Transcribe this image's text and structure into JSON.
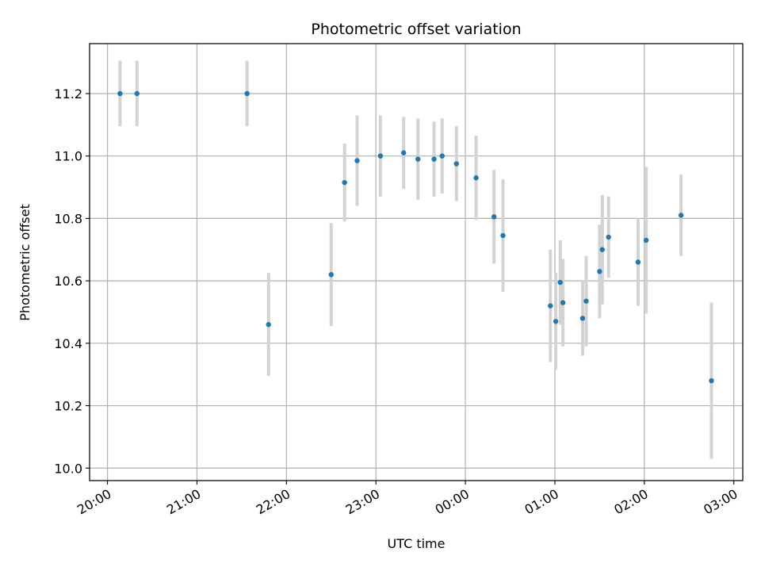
{
  "chart_data": {
    "type": "scatter",
    "title": "Photometric offset variation",
    "xlabel": "UTC time",
    "ylabel": "Photometric offset",
    "x_axis": "time (hours relative to 00:00 UTC)",
    "xlim": [
      -4.2,
      3.1
    ],
    "ylim": [
      9.96,
      11.36
    ],
    "x_ticks": [
      -4,
      -3,
      -2,
      -1,
      0,
      1,
      2,
      3
    ],
    "x_tick_labels": [
      "20:00",
      "21:00",
      "22:00",
      "23:00",
      "00:00",
      "01:00",
      "02:00",
      "03:00"
    ],
    "y_ticks": [
      10.0,
      10.2,
      10.4,
      10.6,
      10.8,
      11.0,
      11.2
    ],
    "y_tick_labels": [
      "10.0",
      "10.2",
      "10.4",
      "10.6",
      "10.8",
      "11.0",
      "11.2"
    ],
    "grid": true,
    "colors": {
      "point": "#1f77b4",
      "errorbar": "#d3d3d3",
      "grid": "#b0b0b0"
    },
    "series": [
      {
        "points": [
          {
            "x": -3.86,
            "y": 11.2,
            "err": 0.105
          },
          {
            "x": -3.67,
            "y": 11.2,
            "err": 0.105
          },
          {
            "x": -2.44,
            "y": 11.2,
            "err": 0.105
          },
          {
            "x": -2.2,
            "y": 10.46,
            "err": 0.165
          },
          {
            "x": -1.5,
            "y": 10.62,
            "err": 0.165
          },
          {
            "x": -1.35,
            "y": 10.915,
            "err": 0.125
          },
          {
            "x": -1.21,
            "y": 10.985,
            "err": 0.145
          },
          {
            "x": -0.95,
            "y": 11.0,
            "err": 0.13
          },
          {
            "x": -0.69,
            "y": 11.01,
            "err": 0.115
          },
          {
            "x": -0.53,
            "y": 10.99,
            "err": 0.13
          },
          {
            "x": -0.35,
            "y": 10.99,
            "err": 0.12
          },
          {
            "x": -0.26,
            "y": 11.0,
            "err": 0.12
          },
          {
            "x": -0.1,
            "y": 10.975,
            "err": 0.12
          },
          {
            "x": 0.12,
            "y": 10.93,
            "err": 0.135
          },
          {
            "x": 0.32,
            "y": 10.805,
            "err": 0.15
          },
          {
            "x": 0.42,
            "y": 10.745,
            "err": 0.18
          },
          {
            "x": 0.95,
            "y": 10.52,
            "err": 0.18
          },
          {
            "x": 1.01,
            "y": 10.47,
            "err": 0.155
          },
          {
            "x": 1.06,
            "y": 10.595,
            "err": 0.135
          },
          {
            "x": 1.09,
            "y": 10.53,
            "err": 0.14
          },
          {
            "x": 1.31,
            "y": 10.48,
            "err": 0.12
          },
          {
            "x": 1.35,
            "y": 10.535,
            "err": 0.145
          },
          {
            "x": 1.5,
            "y": 10.63,
            "err": 0.15
          },
          {
            "x": 1.53,
            "y": 10.7,
            "err": 0.175
          },
          {
            "x": 1.6,
            "y": 10.74,
            "err": 0.13
          },
          {
            "x": 1.93,
            "y": 10.66,
            "err": 0.14
          },
          {
            "x": 2.02,
            "y": 10.73,
            "err": 0.235
          },
          {
            "x": 2.41,
            "y": 10.81,
            "err": 0.13
          },
          {
            "x": 2.75,
            "y": 10.28,
            "err": 0.25
          }
        ]
      }
    ]
  }
}
